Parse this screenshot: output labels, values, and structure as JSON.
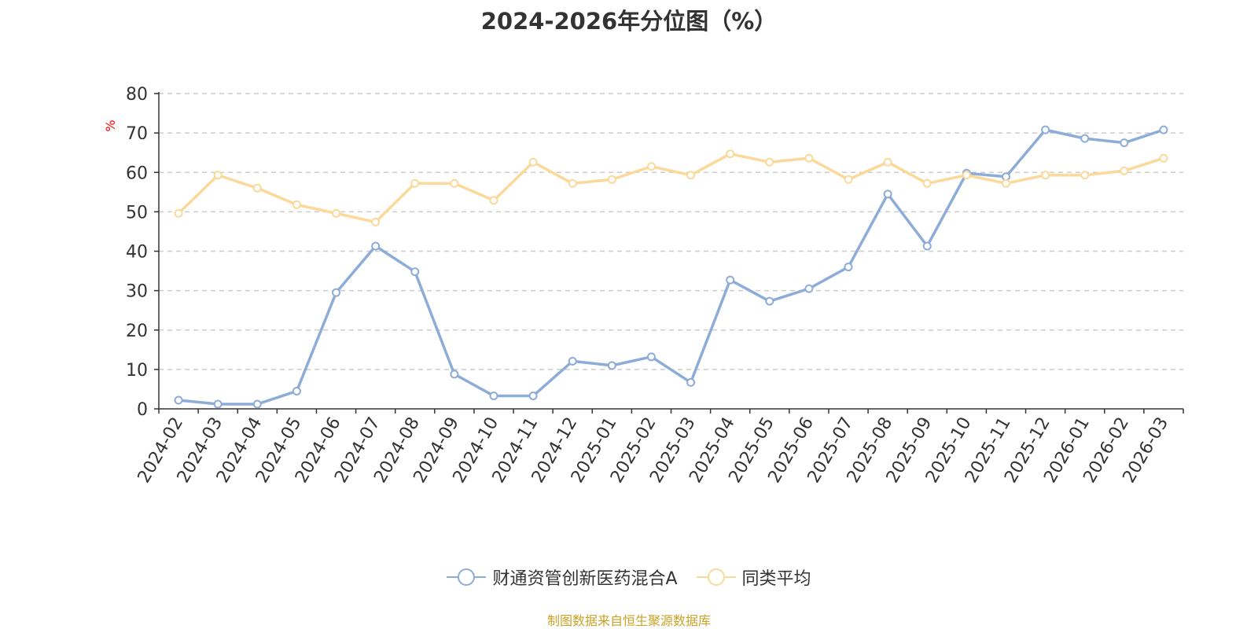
{
  "chart_data": {
    "type": "line",
    "title": "2024-2026年分位图（%）",
    "ylabel": "%",
    "xlabel": "",
    "ylim": [
      0,
      80
    ],
    "yticks": [
      0,
      10,
      20,
      30,
      40,
      50,
      60,
      70,
      80
    ],
    "grid": true,
    "legend_position": "bottom",
    "x": [
      "2024-02",
      "2024-03",
      "2024-04",
      "2024-05",
      "2024-06",
      "2024-07",
      "2024-08",
      "2024-09",
      "2024-10",
      "2024-11",
      "2024-12",
      "2025-01",
      "2025-02",
      "2025-03",
      "2025-04",
      "2025-05",
      "2025-06",
      "2025-07",
      "2025-08",
      "2025-09",
      "2025-10",
      "2025-11",
      "2025-12",
      "2026-01",
      "2026-02",
      "2026-03"
    ],
    "series": [
      {
        "name": "财通资管创新医药混合A",
        "color": "#8eacd8",
        "values": [
          2.2,
          1.2,
          1.2,
          4.5,
          29.5,
          41.3,
          34.8,
          8.8,
          3.3,
          3.3,
          12.1,
          11.0,
          13.2,
          6.7,
          32.7,
          27.3,
          30.5,
          36.0,
          54.5,
          41.3,
          59.8,
          58.9,
          70.8,
          68.6,
          67.5,
          70.8
        ]
      },
      {
        "name": "同类平均",
        "color": "#fad99a",
        "values": [
          49.6,
          59.3,
          56.0,
          51.8,
          49.6,
          47.4,
          57.2,
          57.2,
          52.9,
          62.6,
          57.2,
          58.2,
          61.5,
          59.3,
          64.7,
          62.6,
          63.6,
          58.2,
          62.6,
          57.2,
          59.3,
          57.2,
          59.3,
          59.3,
          60.4,
          63.6
        ]
      }
    ]
  },
  "source_note": "制图数据来自恒生聚源数据库"
}
